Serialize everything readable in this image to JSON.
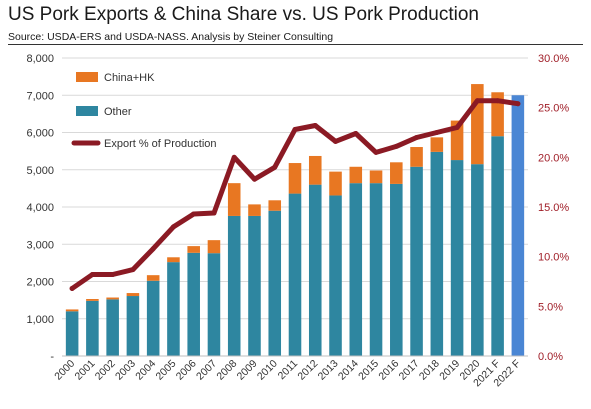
{
  "title": "US Pork Exports & China Share vs. US Pork Production",
  "subtitle": "Source:  USDA-ERS and USDA-NASS.  Analysis by Steiner Consulting",
  "colors": {
    "china_hk": "#e87722",
    "other": "#2e86a0",
    "export_pct": "#8b1a24",
    "forecast_2022": "#4a86d4",
    "right_axis_text": "#a01e28"
  },
  "chart_data": {
    "type": "bar",
    "stacked": true,
    "categories": [
      "2000",
      "2001",
      "2002",
      "2003",
      "2004",
      "2005",
      "2006",
      "2007",
      "2008",
      "2009",
      "2010",
      "2011",
      "2012",
      "2013",
      "2014",
      "2015",
      "2016",
      "2017",
      "2018",
      "2019",
      "2020",
      "2021 F",
      "2022 F"
    ],
    "series": [
      {
        "name": "Other",
        "type": "bar",
        "axis": "left",
        "values": [
          1200,
          1480,
          1520,
          1610,
          2020,
          2520,
          2770,
          2760,
          3760,
          3760,
          3900,
          4360,
          4600,
          4310,
          4640,
          4640,
          4620,
          5080,
          5480,
          5260,
          5150,
          5900,
          7000
        ]
      },
      {
        "name": "China+HK",
        "type": "bar",
        "axis": "left",
        "values": [
          50,
          50,
          50,
          80,
          150,
          130,
          180,
          350,
          880,
          310,
          280,
          820,
          770,
          640,
          440,
          340,
          580,
          530,
          390,
          1060,
          2150,
          1180,
          0
        ]
      },
      {
        "name": "Export % of Production",
        "type": "line",
        "axis": "right",
        "values": [
          6.8,
          8.2,
          8.2,
          8.7,
          10.8,
          13.0,
          14.3,
          14.4,
          20.0,
          17.8,
          19.0,
          22.8,
          23.2,
          21.6,
          22.4,
          20.5,
          21.1,
          22.0,
          22.5,
          23.0,
          25.7,
          25.7,
          25.4
        ]
      }
    ],
    "y_left": {
      "min": 0,
      "max": 8000,
      "ticks": [
        "-",
        "1,000",
        "2,000",
        "3,000",
        "4,000",
        "5,000",
        "6,000",
        "7,000",
        "8,000"
      ]
    },
    "y_right": {
      "min": 0,
      "max": 30,
      "ticks": [
        "0.0%",
        "5.0%",
        "10.0%",
        "15.0%",
        "20.0%",
        "25.0%",
        "30.0%"
      ]
    },
    "legend": {
      "placement": "top-left",
      "entries": [
        "China+HK",
        "Other",
        "Export % of Production"
      ]
    },
    "grid": "horizontal"
  }
}
